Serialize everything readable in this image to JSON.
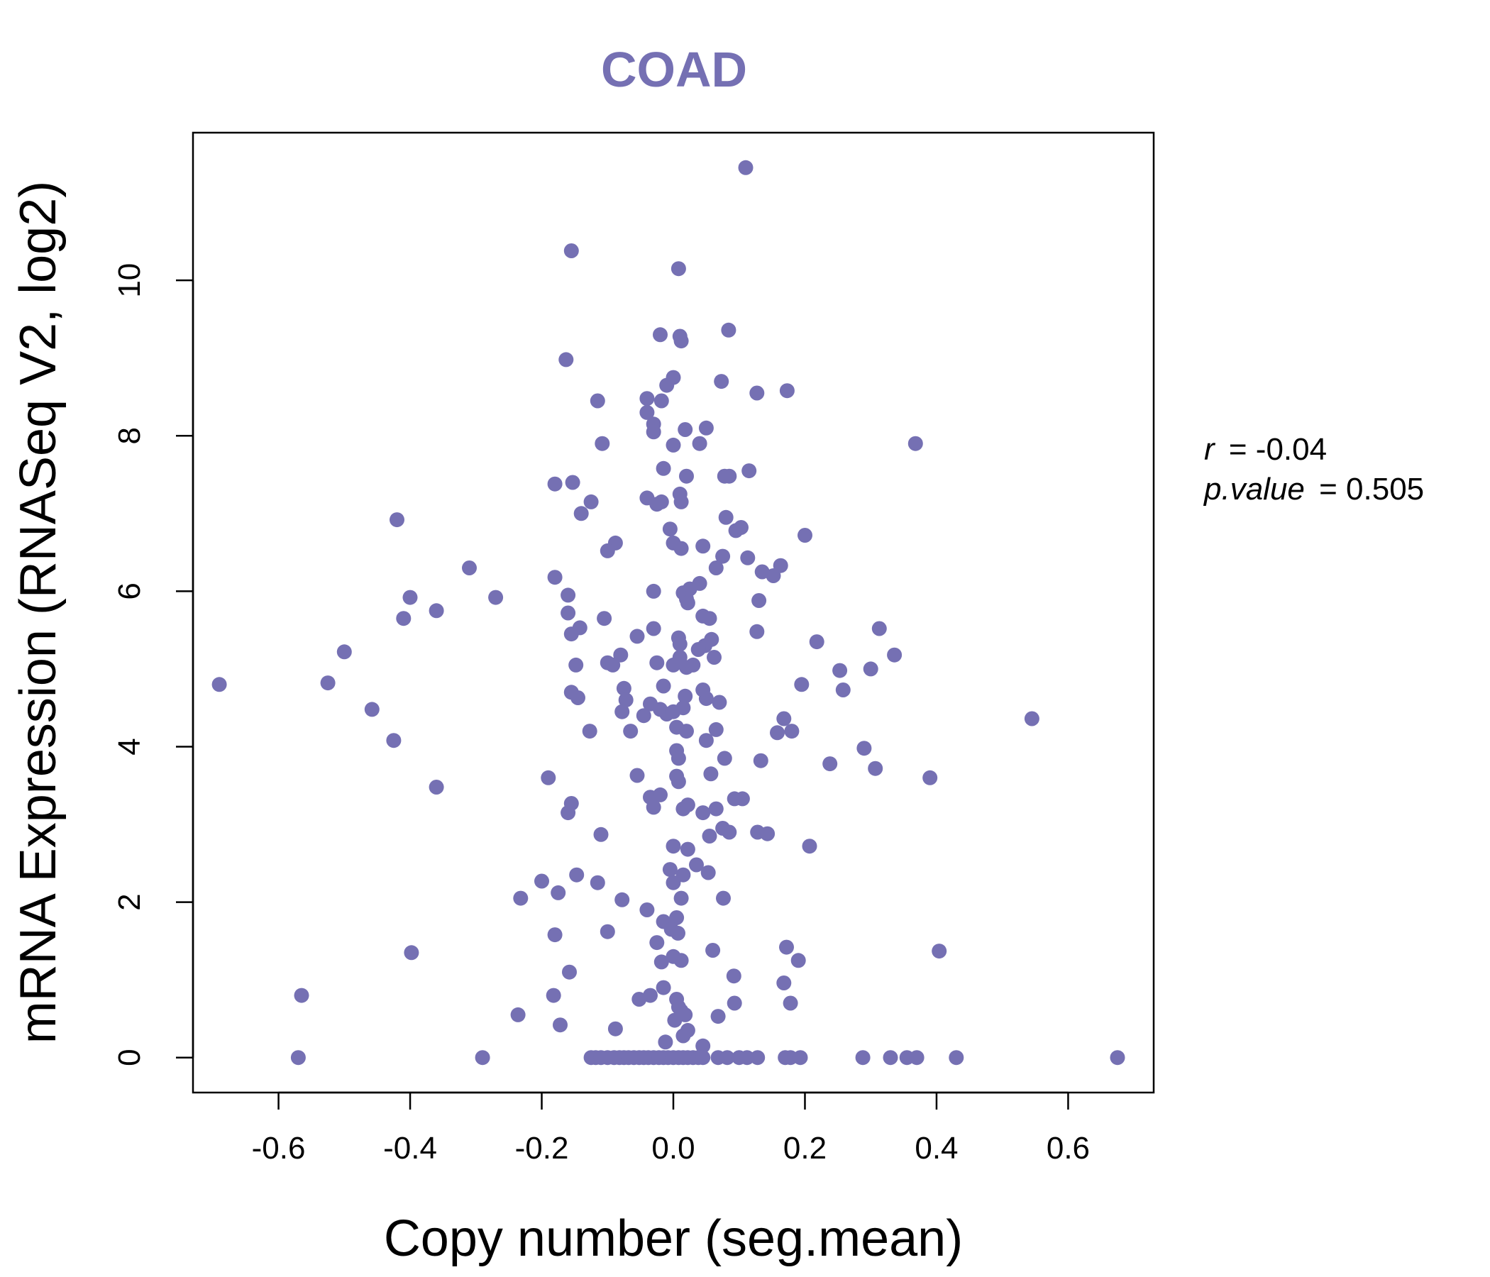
{
  "chart_data": {
    "type": "scatter",
    "title": "COAD",
    "xlabel": "Copy number (seg.mean)",
    "ylabel": "mRNA Expression (RNASeq V2, log2)",
    "xlim": [
      -0.73,
      0.73
    ],
    "ylim": [
      -0.45,
      11.9
    ],
    "xticks": [
      -0.6,
      -0.4,
      -0.2,
      0.0,
      0.2,
      0.4,
      0.6
    ],
    "xtick_labels": [
      "-0.6",
      "-0.4",
      "-0.2",
      "0.0",
      "0.2",
      "0.4",
      "0.6"
    ],
    "yticks": [
      0,
      2,
      4,
      6,
      8,
      10
    ],
    "ytick_labels": [
      "0",
      "2",
      "4",
      "6",
      "8",
      "10"
    ],
    "point_color": "#7570b3",
    "stats": {
      "r_label": "r",
      "r_value": "= -0.04",
      "p_label": "p.value",
      "p_value": "= 0.505"
    },
    "points": [
      [
        0.11,
        11.45
      ],
      [
        -0.155,
        10.38
      ],
      [
        0.008,
        10.15
      ],
      [
        -0.02,
        9.3
      ],
      [
        0.01,
        9.28
      ],
      [
        0.012,
        9.22
      ],
      [
        0.084,
        9.36
      ],
      [
        -0.163,
        8.98
      ],
      [
        0.0,
        8.75
      ],
      [
        -0.01,
        8.65
      ],
      [
        0.073,
        8.7
      ],
      [
        -0.115,
        8.45
      ],
      [
        -0.04,
        8.48
      ],
      [
        -0.018,
        8.45
      ],
      [
        0.127,
        8.55
      ],
      [
        0.173,
        8.58
      ],
      [
        -0.04,
        8.3
      ],
      [
        -0.03,
        8.15
      ],
      [
        -0.03,
        8.05
      ],
      [
        0.018,
        8.08
      ],
      [
        0.05,
        8.1
      ],
      [
        -0.108,
        7.9
      ],
      [
        0.0,
        7.88
      ],
      [
        0.04,
        7.9
      ],
      [
        0.368,
        7.9
      ],
      [
        -0.015,
        7.58
      ],
      [
        0.02,
        7.48
      ],
      [
        0.078,
        7.48
      ],
      [
        0.085,
        7.48
      ],
      [
        0.115,
        7.55
      ],
      [
        -0.18,
        7.38
      ],
      [
        -0.153,
        7.4
      ],
      [
        -0.04,
        7.2
      ],
      [
        -0.025,
        7.12
      ],
      [
        -0.018,
        7.15
      ],
      [
        0.01,
        7.25
      ],
      [
        0.012,
        7.15
      ],
      [
        -0.125,
        7.15
      ],
      [
        -0.14,
        7.0
      ],
      [
        0.08,
        6.95
      ],
      [
        -0.005,
        6.8
      ],
      [
        0.095,
        6.78
      ],
      [
        0.103,
        6.82
      ],
      [
        0.2,
        6.72
      ],
      [
        -0.42,
        6.92
      ],
      [
        0.0,
        6.62
      ],
      [
        0.012,
        6.55
      ],
      [
        0.045,
        6.58
      ],
      [
        -0.088,
        6.62
      ],
      [
        -0.1,
        6.52
      ],
      [
        0.075,
        6.45
      ],
      [
        0.113,
        6.43
      ],
      [
        0.065,
        6.3
      ],
      [
        0.135,
        6.25
      ],
      [
        0.152,
        6.2
      ],
      [
        0.163,
        6.33
      ],
      [
        -0.31,
        6.3
      ],
      [
        -0.18,
        6.18
      ],
      [
        0.04,
        6.1
      ],
      [
        0.025,
        6.03
      ],
      [
        0.015,
        5.98
      ],
      [
        -0.03,
        6.0
      ],
      [
        0.02,
        5.9
      ],
      [
        0.022,
        5.85
      ],
      [
        -0.16,
        5.95
      ],
      [
        -0.4,
        5.92
      ],
      [
        -0.27,
        5.92
      ],
      [
        0.13,
        5.88
      ],
      [
        -0.36,
        5.75
      ],
      [
        -0.41,
        5.65
      ],
      [
        -0.16,
        5.72
      ],
      [
        -0.105,
        5.65
      ],
      [
        0.045,
        5.68
      ],
      [
        0.055,
        5.65
      ],
      [
        -0.142,
        5.53
      ],
      [
        -0.155,
        5.45
      ],
      [
        -0.055,
        5.42
      ],
      [
        -0.03,
        5.52
      ],
      [
        0.008,
        5.4
      ],
      [
        0.01,
        5.32
      ],
      [
        0.058,
        5.38
      ],
      [
        0.048,
        5.3
      ],
      [
        0.038,
        5.25
      ],
      [
        0.127,
        5.48
      ],
      [
        0.218,
        5.35
      ],
      [
        0.313,
        5.52
      ],
      [
        0.336,
        5.18
      ],
      [
        -0.5,
        5.22
      ],
      [
        -0.08,
        5.18
      ],
      [
        -0.1,
        5.08
      ],
      [
        -0.092,
        5.05
      ],
      [
        -0.148,
        5.05
      ],
      [
        -0.025,
        5.08
      ],
      [
        0.0,
        5.05
      ],
      [
        0.01,
        5.15
      ],
      [
        0.02,
        5.02
      ],
      [
        0.03,
        5.05
      ],
      [
        0.062,
        5.15
      ],
      [
        0.253,
        4.98
      ],
      [
        0.3,
        5.0
      ],
      [
        -0.525,
        4.82
      ],
      [
        -0.69,
        4.8
      ],
      [
        -0.075,
        4.75
      ],
      [
        -0.015,
        4.78
      ],
      [
        0.195,
        4.8
      ],
      [
        -0.155,
        4.7
      ],
      [
        -0.145,
        4.63
      ],
      [
        -0.072,
        4.6
      ],
      [
        -0.078,
        4.45
      ],
      [
        0.018,
        4.65
      ],
      [
        0.045,
        4.73
      ],
      [
        0.05,
        4.62
      ],
      [
        0.07,
        4.57
      ],
      [
        0.258,
        4.73
      ],
      [
        -0.458,
        4.48
      ],
      [
        -0.035,
        4.55
      ],
      [
        -0.02,
        4.48
      ],
      [
        -0.01,
        4.42
      ],
      [
        0.0,
        4.45
      ],
      [
        0.015,
        4.5
      ],
      [
        -0.045,
        4.4
      ],
      [
        0.545,
        4.36
      ],
      [
        0.168,
        4.36
      ],
      [
        -0.127,
        4.2
      ],
      [
        -0.065,
        4.2
      ],
      [
        0.005,
        4.25
      ],
      [
        0.02,
        4.2
      ],
      [
        0.065,
        4.22
      ],
      [
        0.158,
        4.18
      ],
      [
        0.18,
        4.2
      ],
      [
        -0.425,
        4.08
      ],
      [
        0.05,
        4.08
      ],
      [
        0.005,
        3.95
      ],
      [
        0.008,
        3.85
      ],
      [
        0.078,
        3.85
      ],
      [
        0.133,
        3.82
      ],
      [
        0.238,
        3.78
      ],
      [
        0.29,
        3.98
      ],
      [
        0.307,
        3.72
      ],
      [
        0.39,
        3.6
      ],
      [
        -0.055,
        3.63
      ],
      [
        0.005,
        3.62
      ],
      [
        0.008,
        3.55
      ],
      [
        0.057,
        3.65
      ],
      [
        -0.19,
        3.6
      ],
      [
        -0.36,
        3.48
      ],
      [
        -0.035,
        3.35
      ],
      [
        -0.02,
        3.38
      ],
      [
        0.093,
        3.33
      ],
      [
        0.105,
        3.33
      ],
      [
        -0.155,
        3.27
      ],
      [
        -0.03,
        3.22
      ],
      [
        0.015,
        3.2
      ],
      [
        0.022,
        3.25
      ],
      [
        -0.16,
        3.15
      ],
      [
        0.045,
        3.15
      ],
      [
        0.065,
        3.2
      ],
      [
        0.075,
        2.95
      ],
      [
        0.085,
        2.9
      ],
      [
        0.128,
        2.9
      ],
      [
        0.143,
        2.88
      ],
      [
        -0.11,
        2.87
      ],
      [
        0.055,
        2.85
      ],
      [
        0.0,
        2.72
      ],
      [
        0.022,
        2.68
      ],
      [
        0.207,
        2.72
      ],
      [
        0.035,
        2.48
      ],
      [
        0.053,
        2.38
      ],
      [
        -0.005,
        2.42
      ],
      [
        0.0,
        2.25
      ],
      [
        0.015,
        2.35
      ],
      [
        -0.147,
        2.35
      ],
      [
        -0.2,
        2.27
      ],
      [
        -0.115,
        2.25
      ],
      [
        -0.175,
        2.12
      ],
      [
        -0.232,
        2.05
      ],
      [
        -0.078,
        2.03
      ],
      [
        0.012,
        2.05
      ],
      [
        0.076,
        2.05
      ],
      [
        -0.04,
        1.9
      ],
      [
        -0.015,
        1.75
      ],
      [
        0.005,
        1.8
      ],
      [
        -0.003,
        1.65
      ],
      [
        0.007,
        1.6
      ],
      [
        -0.1,
        1.62
      ],
      [
        -0.18,
        1.58
      ],
      [
        -0.025,
        1.48
      ],
      [
        0.06,
        1.38
      ],
      [
        0.172,
        1.42
      ],
      [
        0.19,
        1.25
      ],
      [
        0.404,
        1.37
      ],
      [
        -0.398,
        1.35
      ],
      [
        -0.018,
        1.23
      ],
      [
        0.0,
        1.3
      ],
      [
        0.012,
        1.25
      ],
      [
        -0.158,
        1.1
      ],
      [
        0.092,
        1.05
      ],
      [
        0.168,
        0.96
      ],
      [
        -0.182,
        0.8
      ],
      [
        -0.015,
        0.9
      ],
      [
        -0.035,
        0.8
      ],
      [
        -0.052,
        0.75
      ],
      [
        0.005,
        0.75
      ],
      [
        0.008,
        0.65
      ],
      [
        0.012,
        0.6
      ],
      [
        0.018,
        0.55
      ],
      [
        -0.565,
        0.8
      ],
      [
        0.178,
        0.7
      ],
      [
        0.093,
        0.7
      ],
      [
        0.068,
        0.53
      ],
      [
        -0.236,
        0.55
      ],
      [
        0.002,
        0.48
      ],
      [
        -0.172,
        0.42
      ],
      [
        -0.088,
        0.37
      ],
      [
        0.022,
        0.35
      ],
      [
        0.015,
        0.28
      ],
      [
        -0.012,
        0.2
      ],
      [
        0.045,
        0.15
      ],
      [
        -0.57,
        0.0
      ],
      [
        -0.29,
        0.0
      ],
      [
        -0.125,
        0.0
      ],
      [
        -0.118,
        0.0
      ],
      [
        -0.11,
        0.0
      ],
      [
        -0.1,
        0.0
      ],
      [
        -0.09,
        0.0
      ],
      [
        -0.082,
        0.0
      ],
      [
        -0.075,
        0.0
      ],
      [
        -0.068,
        0.0
      ],
      [
        -0.06,
        0.0
      ],
      [
        -0.052,
        0.0
      ],
      [
        -0.045,
        0.0
      ],
      [
        -0.038,
        0.0
      ],
      [
        -0.03,
        0.0
      ],
      [
        -0.022,
        0.0
      ],
      [
        -0.015,
        0.0
      ],
      [
        -0.008,
        0.0
      ],
      [
        0.0,
        0.0
      ],
      [
        0.008,
        0.0
      ],
      [
        0.015,
        0.0
      ],
      [
        0.022,
        0.0
      ],
      [
        0.03,
        0.0
      ],
      [
        0.038,
        0.0
      ],
      [
        0.045,
        0.0
      ],
      [
        0.068,
        0.0
      ],
      [
        0.082,
        0.0
      ],
      [
        0.1,
        0.0
      ],
      [
        0.112,
        0.0
      ],
      [
        0.128,
        0.0
      ],
      [
        0.17,
        0.0
      ],
      [
        0.178,
        0.0
      ],
      [
        0.193,
        0.0
      ],
      [
        0.288,
        0.0
      ],
      [
        0.33,
        0.0
      ],
      [
        0.355,
        0.0
      ],
      [
        0.37,
        0.0
      ],
      [
        0.43,
        0.0
      ],
      [
        0.675,
        0.0
      ]
    ]
  }
}
